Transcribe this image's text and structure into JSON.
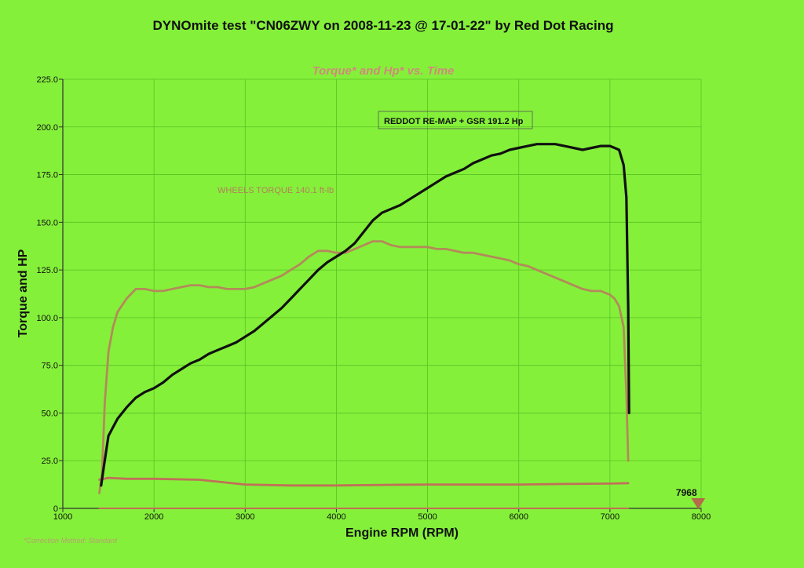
{
  "colors": {
    "background": "#84f03a",
    "grid": "#5cc024",
    "axis": "#303030",
    "hp": "#111111",
    "torque": "#b4895a",
    "lower": "#c07058",
    "subtitle": "#d08a7a",
    "marker": "#b56a4a",
    "footnote": "#b8a070"
  },
  "chart_data": {
    "type": "line",
    "title": "DYNOmite test \"CN06ZWY on 2008-11-23 @ 17-01-22\" by Red Dot Racing",
    "subtitle": "Torque* and Hp* vs. Time",
    "xlabel": "Engine RPM (RPM)",
    "ylabel": "Torque and HP",
    "xlim": [
      1000,
      8000
    ],
    "ylim": [
      0,
      225
    ],
    "x_ticks": [
      "1000",
      "2000",
      "3000",
      "4000",
      "5000",
      "6000",
      "7000",
      "8000"
    ],
    "y_ticks": [
      "0",
      "25.0",
      "50.0",
      "75.0",
      "100.0",
      "125.0",
      "150.0",
      "175.0",
      "200.0",
      "225.0"
    ],
    "grid": true,
    "series": [
      {
        "name": "REDDOT RE-MAP + GSR 191.2 Hp",
        "points": [
          [
            1420,
            12
          ],
          [
            1450,
            22
          ],
          [
            1500,
            38
          ],
          [
            1600,
            47
          ],
          [
            1700,
            53
          ],
          [
            1800,
            58
          ],
          [
            1900,
            61
          ],
          [
            2000,
            63
          ],
          [
            2100,
            66
          ],
          [
            2200,
            70
          ],
          [
            2300,
            73
          ],
          [
            2400,
            76
          ],
          [
            2500,
            78
          ],
          [
            2600,
            81
          ],
          [
            2700,
            83
          ],
          [
            2800,
            85
          ],
          [
            2900,
            87
          ],
          [
            3000,
            90
          ],
          [
            3100,
            93
          ],
          [
            3200,
            97
          ],
          [
            3300,
            101
          ],
          [
            3400,
            105
          ],
          [
            3500,
            110
          ],
          [
            3600,
            115
          ],
          [
            3700,
            120
          ],
          [
            3800,
            125
          ],
          [
            3900,
            129
          ],
          [
            4000,
            132
          ],
          [
            4100,
            135
          ],
          [
            4200,
            139
          ],
          [
            4300,
            145
          ],
          [
            4400,
            151
          ],
          [
            4500,
            155
          ],
          [
            4600,
            157
          ],
          [
            4700,
            159
          ],
          [
            4800,
            162
          ],
          [
            4900,
            165
          ],
          [
            5000,
            168
          ],
          [
            5100,
            171
          ],
          [
            5200,
            174
          ],
          [
            5300,
            176
          ],
          [
            5400,
            178
          ],
          [
            5500,
            181
          ],
          [
            5600,
            183
          ],
          [
            5700,
            185
          ],
          [
            5800,
            186
          ],
          [
            5900,
            188
          ],
          [
            6000,
            189
          ],
          [
            6100,
            190
          ],
          [
            6200,
            191
          ],
          [
            6300,
            191
          ],
          [
            6400,
            191
          ],
          [
            6500,
            190
          ],
          [
            6600,
            189
          ],
          [
            6700,
            188
          ],
          [
            6800,
            189
          ],
          [
            6900,
            190
          ],
          [
            7000,
            190
          ],
          [
            7050,
            189
          ],
          [
            7100,
            188
          ],
          [
            7150,
            180
          ],
          [
            7180,
            163
          ],
          [
            7200,
            105
          ],
          [
            7210,
            50
          ]
        ]
      },
      {
        "name": "WHEELS TORQUE 140.1 ft-lb",
        "points": [
          [
            1400,
            8
          ],
          [
            1430,
            18
          ],
          [
            1460,
            55
          ],
          [
            1500,
            82
          ],
          [
            1550,
            95
          ],
          [
            1600,
            103
          ],
          [
            1700,
            110
          ],
          [
            1800,
            115
          ],
          [
            1900,
            115
          ],
          [
            2000,
            114
          ],
          [
            2100,
            114
          ],
          [
            2200,
            115
          ],
          [
            2300,
            116
          ],
          [
            2400,
            117
          ],
          [
            2500,
            117
          ],
          [
            2600,
            116
          ],
          [
            2700,
            116
          ],
          [
            2800,
            115
          ],
          [
            2900,
            115
          ],
          [
            3000,
            115
          ],
          [
            3100,
            116
          ],
          [
            3200,
            118
          ],
          [
            3300,
            120
          ],
          [
            3400,
            122
          ],
          [
            3500,
            125
          ],
          [
            3600,
            128
          ],
          [
            3700,
            132
          ],
          [
            3800,
            135
          ],
          [
            3900,
            135
          ],
          [
            4000,
            134
          ],
          [
            4100,
            134
          ],
          [
            4200,
            136
          ],
          [
            4300,
            138
          ],
          [
            4400,
            140
          ],
          [
            4500,
            140
          ],
          [
            4600,
            138
          ],
          [
            4700,
            137
          ],
          [
            4800,
            137
          ],
          [
            4900,
            137
          ],
          [
            5000,
            137
          ],
          [
            5100,
            136
          ],
          [
            5200,
            136
          ],
          [
            5300,
            135
          ],
          [
            5400,
            134
          ],
          [
            5500,
            134
          ],
          [
            5600,
            133
          ],
          [
            5700,
            132
          ],
          [
            5800,
            131
          ],
          [
            5900,
            130
          ],
          [
            6000,
            128
          ],
          [
            6100,
            127
          ],
          [
            6200,
            125
          ],
          [
            6300,
            123
          ],
          [
            6400,
            121
          ],
          [
            6500,
            119
          ],
          [
            6600,
            117
          ],
          [
            6700,
            115
          ],
          [
            6800,
            114
          ],
          [
            6900,
            114
          ],
          [
            7000,
            112
          ],
          [
            7050,
            110
          ],
          [
            7100,
            106
          ],
          [
            7150,
            95
          ],
          [
            7180,
            60
          ],
          [
            7200,
            25
          ]
        ]
      },
      {
        "points": [
          [
            1400,
            15
          ],
          [
            1500,
            16
          ],
          [
            1700,
            15.5
          ],
          [
            2000,
            15.5
          ],
          [
            2500,
            15
          ],
          [
            3000,
            12.5
          ],
          [
            3500,
            12
          ],
          [
            4000,
            12
          ],
          [
            4500,
            12.3
          ],
          [
            5000,
            12.5
          ],
          [
            5500,
            12.5
          ],
          [
            6000,
            12.5
          ],
          [
            6500,
            12.8
          ],
          [
            7000,
            13
          ],
          [
            7200,
            13.2
          ]
        ]
      },
      {
        "points": [
          [
            1400,
            0
          ],
          [
            7200,
            0
          ]
        ]
      }
    ],
    "annotations": {
      "hp_label": "REDDOT RE-MAP + GSR 191.2 Hp",
      "torque_label": "WHEELS TORQUE 140.1 ft-lb",
      "marker_label": "7968",
      "marker_x": 7968,
      "footnote": "*Correction Method: Standard"
    }
  }
}
